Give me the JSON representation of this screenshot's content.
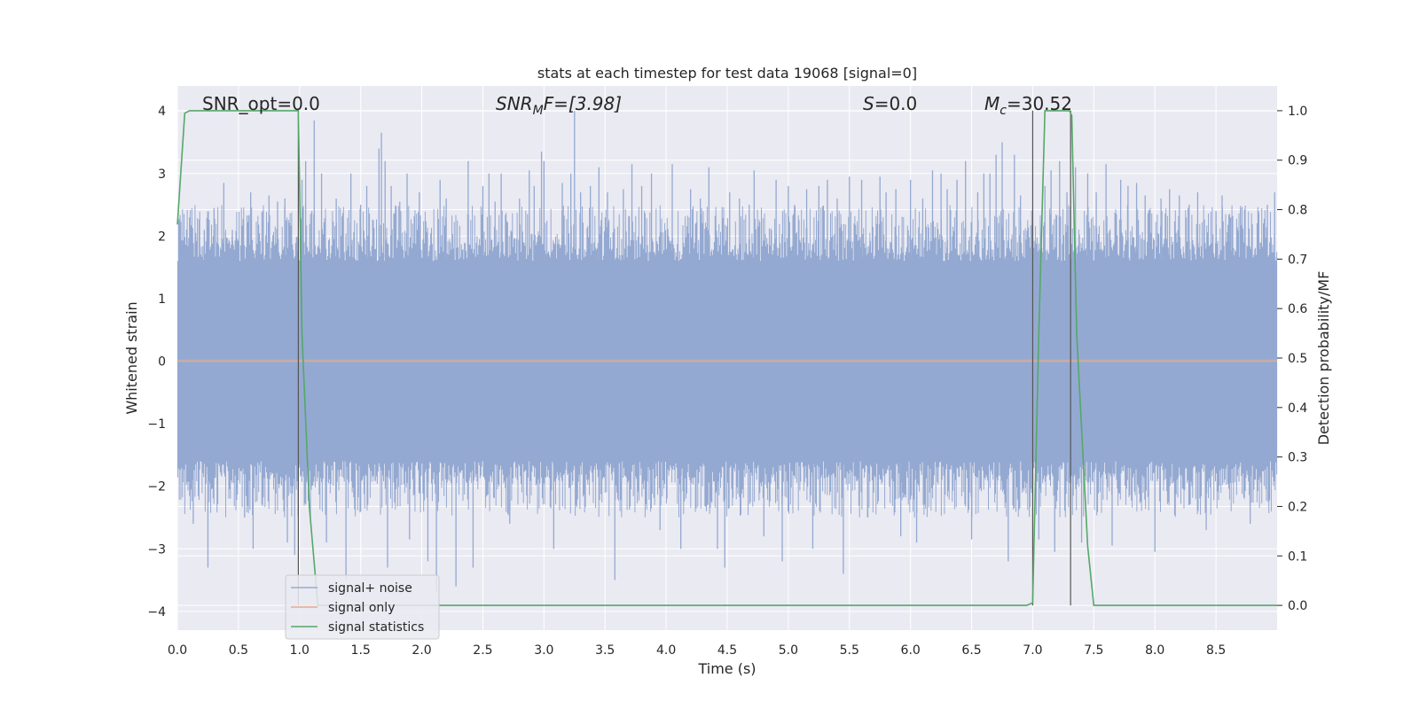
{
  "chart_data": {
    "type": "line",
    "title": "stats at each timestep for test data 19068 [signal=0]",
    "xlabel": "Time (s)",
    "ylabel": "Whitened strain",
    "y2label": "Detection probability/MF",
    "xlim": [
      0.0,
      9.0
    ],
    "ylim": [
      -4.3,
      4.4
    ],
    "y2lim": [
      -0.05,
      1.05
    ],
    "xticks": [
      "0.0",
      "0.5",
      "1.0",
      "1.5",
      "2.0",
      "2.5",
      "3.0",
      "3.5",
      "4.0",
      "4.5",
      "5.0",
      "5.5",
      "6.0",
      "6.5",
      "7.0",
      "7.5",
      "8.0",
      "8.5"
    ],
    "xtick_values": [
      0.0,
      0.5,
      1.0,
      1.5,
      2.0,
      2.5,
      3.0,
      3.5,
      4.0,
      4.5,
      5.0,
      5.5,
      6.0,
      6.5,
      7.0,
      7.5,
      8.0,
      8.5
    ],
    "yticks": [
      "−4",
      "−3",
      "−2",
      "−1",
      "0",
      "1",
      "2",
      "3",
      "4"
    ],
    "ytick_values": [
      -4,
      -3,
      -2,
      -1,
      0,
      1,
      2,
      3,
      4
    ],
    "y2ticks": [
      "0.0",
      "0.1",
      "0.2",
      "0.3",
      "0.4",
      "0.5",
      "0.6",
      "0.7",
      "0.8",
      "0.9",
      "1.0"
    ],
    "y2tick_values": [
      0.0,
      0.1,
      0.2,
      0.3,
      0.4,
      0.5,
      0.6,
      0.7,
      0.8,
      0.9,
      1.0
    ],
    "grid": true,
    "legend_position": "lower-left",
    "annotations": {
      "snr_opt": "SNR_opt=0.0",
      "snr_mf_italic": "SNR",
      "snr_mf_sub": "M",
      "snr_mf_rest": "F=[3.98]",
      "s_italic": "S",
      "s_rest": "=0.0",
      "mc_italic": "M",
      "mc_sub": "c",
      "mc_rest": "=30.52"
    },
    "series": [
      {
        "name": "signal+ noise",
        "color": "#94a9d1",
        "description_values": "noise envelope, approx ±1.6 typical, peaks to ±4",
        "core_amplitude": 1.6,
        "peak_samples": [
          [
            0.1,
            2.3
          ],
          [
            0.15,
            2.05
          ],
          [
            0.13,
            -2.6
          ],
          [
            0.22,
            2.1
          ],
          [
            0.25,
            -3.3
          ],
          [
            0.3,
            2.45
          ],
          [
            0.38,
            2.85
          ],
          [
            0.45,
            2.1
          ],
          [
            0.55,
            -2.5
          ],
          [
            0.6,
            2.7
          ],
          [
            0.62,
            -3.0
          ],
          [
            0.7,
            2.4
          ],
          [
            0.75,
            2.65
          ],
          [
            0.82,
            2.55
          ],
          [
            0.88,
            2.6
          ],
          [
            0.9,
            -2.9
          ],
          [
            0.96,
            -3.1
          ],
          [
            1.02,
            2.9
          ],
          [
            1.05,
            3.2
          ],
          [
            1.1,
            2.4
          ],
          [
            1.12,
            3.85
          ],
          [
            1.18,
            3.0
          ],
          [
            1.22,
            -2.9
          ],
          [
            1.3,
            2.6
          ],
          [
            1.38,
            -3.5
          ],
          [
            1.42,
            3.0
          ],
          [
            1.5,
            2.5
          ],
          [
            1.55,
            2.8
          ],
          [
            1.65,
            3.4
          ],
          [
            1.67,
            3.65
          ],
          [
            1.7,
            3.2
          ],
          [
            1.72,
            -3.3
          ],
          [
            1.75,
            2.8
          ],
          [
            1.82,
            2.55
          ],
          [
            1.88,
            3.0
          ],
          [
            1.9,
            -2.85
          ],
          [
            1.98,
            2.7
          ],
          [
            2.05,
            -3.2
          ],
          [
            2.12,
            -3.7
          ],
          [
            2.15,
            2.9
          ],
          [
            2.2,
            2.6
          ],
          [
            2.28,
            -3.6
          ],
          [
            2.38,
            3.2
          ],
          [
            2.42,
            -3.3
          ],
          [
            2.5,
            2.8
          ],
          [
            2.55,
            3.0
          ],
          [
            2.6,
            2.55
          ],
          [
            2.65,
            3.0
          ],
          [
            2.72,
            -2.6
          ],
          [
            2.8,
            2.6
          ],
          [
            2.88,
            3.05
          ],
          [
            2.92,
            2.8
          ],
          [
            2.98,
            3.35
          ],
          [
            3.0,
            3.2
          ],
          [
            3.08,
            -3.0
          ],
          [
            3.15,
            2.85
          ],
          [
            3.22,
            3.0
          ],
          [
            3.25,
            4.0
          ],
          [
            3.3,
            2.7
          ],
          [
            3.38,
            2.8
          ],
          [
            3.45,
            3.1
          ],
          [
            3.52,
            2.7
          ],
          [
            3.58,
            -3.5
          ],
          [
            3.65,
            2.75
          ],
          [
            3.72,
            3.15
          ],
          [
            3.8,
            2.8
          ],
          [
            3.88,
            3.0
          ],
          [
            3.95,
            -2.7
          ],
          [
            4.05,
            3.15
          ],
          [
            4.12,
            -3.0
          ],
          [
            4.2,
            2.75
          ],
          [
            4.28,
            2.6
          ],
          [
            4.35,
            3.1
          ],
          [
            4.42,
            -3.0
          ],
          [
            4.48,
            -3.3
          ],
          [
            4.52,
            2.7
          ],
          [
            4.6,
            2.6
          ],
          [
            4.68,
            2.5
          ],
          [
            4.72,
            3.05
          ],
          [
            4.8,
            -2.8
          ],
          [
            4.9,
            2.9
          ],
          [
            4.95,
            -3.2
          ],
          [
            5.0,
            2.8
          ],
          [
            5.05,
            2.5
          ],
          [
            5.15,
            2.75
          ],
          [
            5.2,
            -3.0
          ],
          [
            5.25,
            2.8
          ],
          [
            5.32,
            2.9
          ],
          [
            5.4,
            2.6
          ],
          [
            5.45,
            -3.4
          ],
          [
            5.5,
            2.95
          ],
          [
            5.6,
            2.9
          ],
          [
            5.65,
            -2.5
          ],
          [
            5.75,
            2.95
          ],
          [
            5.8,
            2.7
          ],
          [
            5.88,
            2.75
          ],
          [
            5.92,
            -2.8
          ],
          [
            6.0,
            2.9
          ],
          [
            6.05,
            -2.9
          ],
          [
            6.1,
            2.6
          ],
          [
            6.18,
            3.05
          ],
          [
            6.25,
            3.0
          ],
          [
            6.3,
            2.75
          ],
          [
            6.38,
            2.9
          ],
          [
            6.45,
            3.2
          ],
          [
            6.5,
            -2.85
          ],
          [
            6.55,
            2.7
          ],
          [
            6.6,
            3.0
          ],
          [
            6.65,
            3.0
          ],
          [
            6.7,
            3.3
          ],
          [
            6.75,
            3.5
          ],
          [
            6.8,
            -3.2
          ],
          [
            6.85,
            3.3
          ],
          [
            6.9,
            2.65
          ],
          [
            7.0,
            2.2
          ],
          [
            7.05,
            -2.85
          ],
          [
            7.1,
            2.8
          ],
          [
            7.15,
            3.05
          ],
          [
            7.18,
            -3.05
          ],
          [
            7.22,
            3.2
          ],
          [
            7.28,
            2.7
          ],
          [
            7.35,
            3.1
          ],
          [
            7.4,
            -2.9
          ],
          [
            7.45,
            3.0
          ],
          [
            7.52,
            2.7
          ],
          [
            7.6,
            3.15
          ],
          [
            7.65,
            -2.95
          ],
          [
            7.72,
            2.9
          ],
          [
            7.78,
            2.8
          ],
          [
            7.85,
            2.85
          ],
          [
            7.92,
            2.65
          ],
          [
            8.0,
            -3.05
          ],
          [
            8.05,
            2.6
          ],
          [
            8.12,
            2.75
          ],
          [
            8.2,
            2.65
          ],
          [
            8.28,
            2.5
          ],
          [
            8.35,
            2.7
          ],
          [
            8.42,
            -2.7
          ],
          [
            8.5,
            2.4
          ],
          [
            8.55,
            2.65
          ],
          [
            8.62,
            2.3
          ],
          [
            8.7,
            2.45
          ],
          [
            8.78,
            -2.6
          ],
          [
            8.85,
            2.35
          ],
          [
            8.92,
            2.5
          ],
          [
            8.98,
            2.7
          ]
        ]
      },
      {
        "name": "signal only",
        "color": "#e8a98f",
        "x": [
          0.0,
          9.0
        ],
        "y": [
          0.0,
          0.0
        ]
      },
      {
        "name": "signal statistics",
        "color": "#55a868",
        "axis": "right",
        "x": [
          0.0,
          0.06,
          0.1,
          0.5,
          0.99,
          1.02,
          1.08,
          1.15,
          2.0,
          3.0,
          4.0,
          5.0,
          6.0,
          6.95,
          7.0,
          7.05,
          7.1,
          7.2,
          7.3,
          7.32,
          7.36,
          7.45,
          7.5,
          8.0,
          8.5,
          9.0
        ],
        "y": [
          0.77,
          0.995,
          1.0,
          1.0,
          1.0,
          0.55,
          0.2,
          0.0,
          0.0,
          0.0,
          0.0,
          0.0,
          0.0,
          0.0,
          0.005,
          0.55,
          1.0,
          1.0,
          1.0,
          0.99,
          0.55,
          0.12,
          0.0,
          0.0,
          0.0,
          0.0
        ]
      }
    ],
    "vlines": [
      {
        "x": 0.99,
        "color": "#555555"
      },
      {
        "x": 7.0,
        "color": "#555555"
      },
      {
        "x": 7.31,
        "color": "#555555"
      }
    ]
  }
}
